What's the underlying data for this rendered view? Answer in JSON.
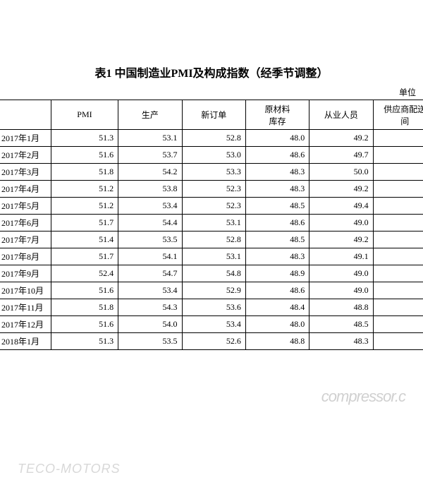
{
  "title": "表1 中国制造业PMI及构成指数（经季节调整）",
  "unit_label": "单位",
  "columns": {
    "period": "",
    "pmi": "PMI",
    "production": "生产",
    "new_orders": "新订单",
    "raw_materials_line1": "原材料",
    "raw_materials_line2": "库存",
    "employees": "从业人员",
    "supplier_line1": "供应商配送",
    "supplier_line2": "间"
  },
  "rows": [
    {
      "period": "2017年1月",
      "pmi": "51.3",
      "production": "53.1",
      "new_orders": "52.8",
      "raw_materials": "48.0",
      "employees": "49.2"
    },
    {
      "period": "2017年2月",
      "pmi": "51.6",
      "production": "53.7",
      "new_orders": "53.0",
      "raw_materials": "48.6",
      "employees": "49.7"
    },
    {
      "period": "2017年3月",
      "pmi": "51.8",
      "production": "54.2",
      "new_orders": "53.3",
      "raw_materials": "48.3",
      "employees": "50.0"
    },
    {
      "period": "2017年4月",
      "pmi": "51.2",
      "production": "53.8",
      "new_orders": "52.3",
      "raw_materials": "48.3",
      "employees": "49.2"
    },
    {
      "period": "2017年5月",
      "pmi": "51.2",
      "production": "53.4",
      "new_orders": "52.3",
      "raw_materials": "48.5",
      "employees": "49.4"
    },
    {
      "period": "2017年6月",
      "pmi": "51.7",
      "production": "54.4",
      "new_orders": "53.1",
      "raw_materials": "48.6",
      "employees": "49.0"
    },
    {
      "period": "2017年7月",
      "pmi": "51.4",
      "production": "53.5",
      "new_orders": "52.8",
      "raw_materials": "48.5",
      "employees": "49.2"
    },
    {
      "period": "2017年8月",
      "pmi": "51.7",
      "production": "54.1",
      "new_orders": "53.1",
      "raw_materials": "48.3",
      "employees": "49.1"
    },
    {
      "period": "2017年9月",
      "pmi": "52.4",
      "production": "54.7",
      "new_orders": "54.8",
      "raw_materials": "48.9",
      "employees": "49.0"
    },
    {
      "period": "2017年10月",
      "pmi": "51.6",
      "production": "53.4",
      "new_orders": "52.9",
      "raw_materials": "48.6",
      "employees": "49.0"
    },
    {
      "period": "2017年11月",
      "pmi": "51.8",
      "production": "54.3",
      "new_orders": "53.6",
      "raw_materials": "48.4",
      "employees": "48.8"
    },
    {
      "period": "2017年12月",
      "pmi": "51.6",
      "production": "54.0",
      "new_orders": "53.4",
      "raw_materials": "48.0",
      "employees": "48.5"
    },
    {
      "period": "2018年1月",
      "pmi": "51.3",
      "production": "53.5",
      "new_orders": "52.6",
      "raw_materials": "48.8",
      "employees": "48.3"
    }
  ],
  "watermarks": {
    "wm1": "compressor.c",
    "wm2": "TECO-MOTORS"
  },
  "styling": {
    "background_color": "#ffffff",
    "text_color": "#000000",
    "border_color": "#000000",
    "watermark_color": "#d0d0d0",
    "title_fontsize": 16,
    "cell_fontsize": 12,
    "font_family": "SimSun"
  }
}
